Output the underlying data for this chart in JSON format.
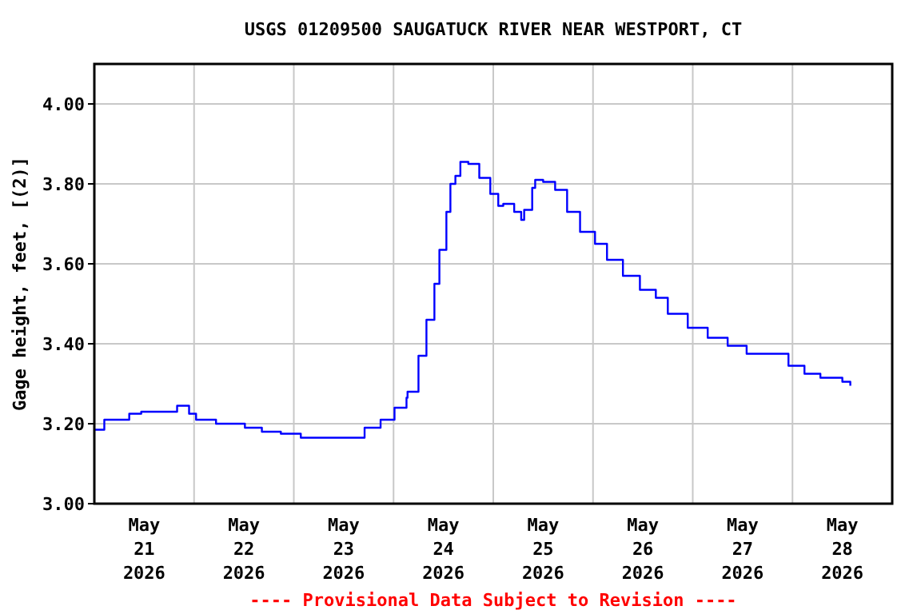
{
  "chart_data": {
    "type": "step",
    "title": "USGS 01209500 SAUGATUCK RIVER NEAR WESTPORT, CT",
    "ylabel": "Gage height, feet, [(2)]",
    "annotations": [
      "---- Provisional Data Subject to Revision ----"
    ],
    "xlim": [
      "2026-05-21T00:00",
      "2026-05-29T00:00"
    ],
    "xticks": [
      {
        "value": "2026-05-21T12:00",
        "label": "May 21 2026"
      },
      {
        "value": "2026-05-22T12:00",
        "label": "May 22 2026"
      },
      {
        "value": "2026-05-23T12:00",
        "label": "May 23 2026"
      },
      {
        "value": "2026-05-24T12:00",
        "label": "May 24 2026"
      },
      {
        "value": "2026-05-25T12:00",
        "label": "May 25 2026"
      },
      {
        "value": "2026-05-26T12:00",
        "label": "May 26 2026"
      },
      {
        "value": "2026-05-27T12:00",
        "label": "May 27 2026"
      },
      {
        "value": "2026-05-28T12:00",
        "label": "May 28 2026"
      },
      {
        "value": "2026-05-22T00:00",
        "label": null
      },
      {
        "value": "2026-05-23T00:00",
        "label": null
      },
      {
        "value": "2026-05-24T00:00",
        "label": null
      },
      {
        "value": "2026-05-25T00:00",
        "label": null
      },
      {
        "value": "2026-05-26T00:00",
        "label": null
      },
      {
        "value": "2026-05-27T00:00",
        "label": null
      },
      {
        "value": "2026-05-28T00:00",
        "label": null
      }
    ],
    "ylim": [
      3.0,
      4.1
    ],
    "yticks": [
      {
        "value": 3.0,
        "label": "3.00"
      },
      {
        "value": 3.2,
        "label": "3.20"
      },
      {
        "value": 3.4,
        "label": "3.40"
      },
      {
        "value": 3.6,
        "label": "3.60"
      },
      {
        "value": 3.8,
        "label": "3.80"
      },
      {
        "value": 4.0,
        "label": "4.00"
      }
    ],
    "grid": true,
    "marker": "none",
    "line_style": "solid",
    "x": [
      "2026-05-21T00:00",
      "2026-05-21T02:24",
      "2026-05-21T07:40",
      "2026-05-21T08:24",
      "2026-05-21T11:17",
      "2026-05-21T18:29",
      "2026-05-21T19:55",
      "2026-05-21T21:36",
      "2026-05-21T22:48",
      "2026-05-22T00:29",
      "2026-05-22T04:48",
      "2026-05-22T05:17",
      "2026-05-22T11:46",
      "2026-05-22T12:14",
      "2026-05-22T16:19",
      "2026-05-22T20:53",
      "2026-05-23T01:41",
      "2026-05-23T12:43",
      "2026-05-23T17:02",
      "2026-05-23T20:53",
      "2026-05-24T00:14",
      "2026-05-24T03:07",
      "2026-05-24T03:22",
      "2026-05-24T06:00",
      "2026-05-24T07:55",
      "2026-05-24T09:50",
      "2026-05-24T11:02",
      "2026-05-24T12:43",
      "2026-05-24T13:41",
      "2026-05-24T14:53",
      "2026-05-24T16:05",
      "2026-05-24T18:00",
      "2026-05-24T20:38",
      "2026-05-24T23:17",
      "2026-05-25T01:12",
      "2026-05-25T02:24",
      "2026-05-25T05:02",
      "2026-05-25T06:43",
      "2026-05-25T07:26",
      "2026-05-25T09:22",
      "2026-05-25T10:05",
      "2026-05-25T11:46",
      "2026-05-25T12:00",
      "2026-05-25T14:53",
      "2026-05-25T17:46",
      "2026-05-25T20:53",
      "2026-05-26T00:29",
      "2026-05-26T03:22",
      "2026-05-26T07:12",
      "2026-05-26T11:17",
      "2026-05-26T15:07",
      "2026-05-26T18:00",
      "2026-05-26T22:48",
      "2026-05-27T03:36",
      "2026-05-27T08:24",
      "2026-05-27T12:58",
      "2026-05-27T19:55",
      "2026-05-27T23:02",
      "2026-05-28T02:53",
      "2026-05-28T06:43",
      "2026-05-28T12:00",
      "2026-05-28T13:55"
    ],
    "series": [
      {
        "color": "#0000ff",
        "values": [
          3.185,
          3.21,
          3.21,
          3.225,
          3.23,
          3.23,
          3.245,
          3.245,
          3.225,
          3.21,
          3.21,
          3.2,
          3.2,
          3.19,
          3.18,
          3.175,
          3.165,
          3.165,
          3.19,
          3.21,
          3.24,
          3.265,
          3.28,
          3.37,
          3.46,
          3.55,
          3.635,
          3.73,
          3.8,
          3.82,
          3.855,
          3.85,
          3.815,
          3.775,
          3.745,
          3.75,
          3.73,
          3.71,
          3.735,
          3.79,
          3.81,
          3.81,
          3.805,
          3.785,
          3.73,
          3.68,
          3.65,
          3.61,
          3.57,
          3.535,
          3.515,
          3.475,
          3.44,
          3.415,
          3.395,
          3.375,
          3.375,
          3.345,
          3.325,
          3.315,
          3.305,
          3.295
        ]
      }
    ]
  }
}
